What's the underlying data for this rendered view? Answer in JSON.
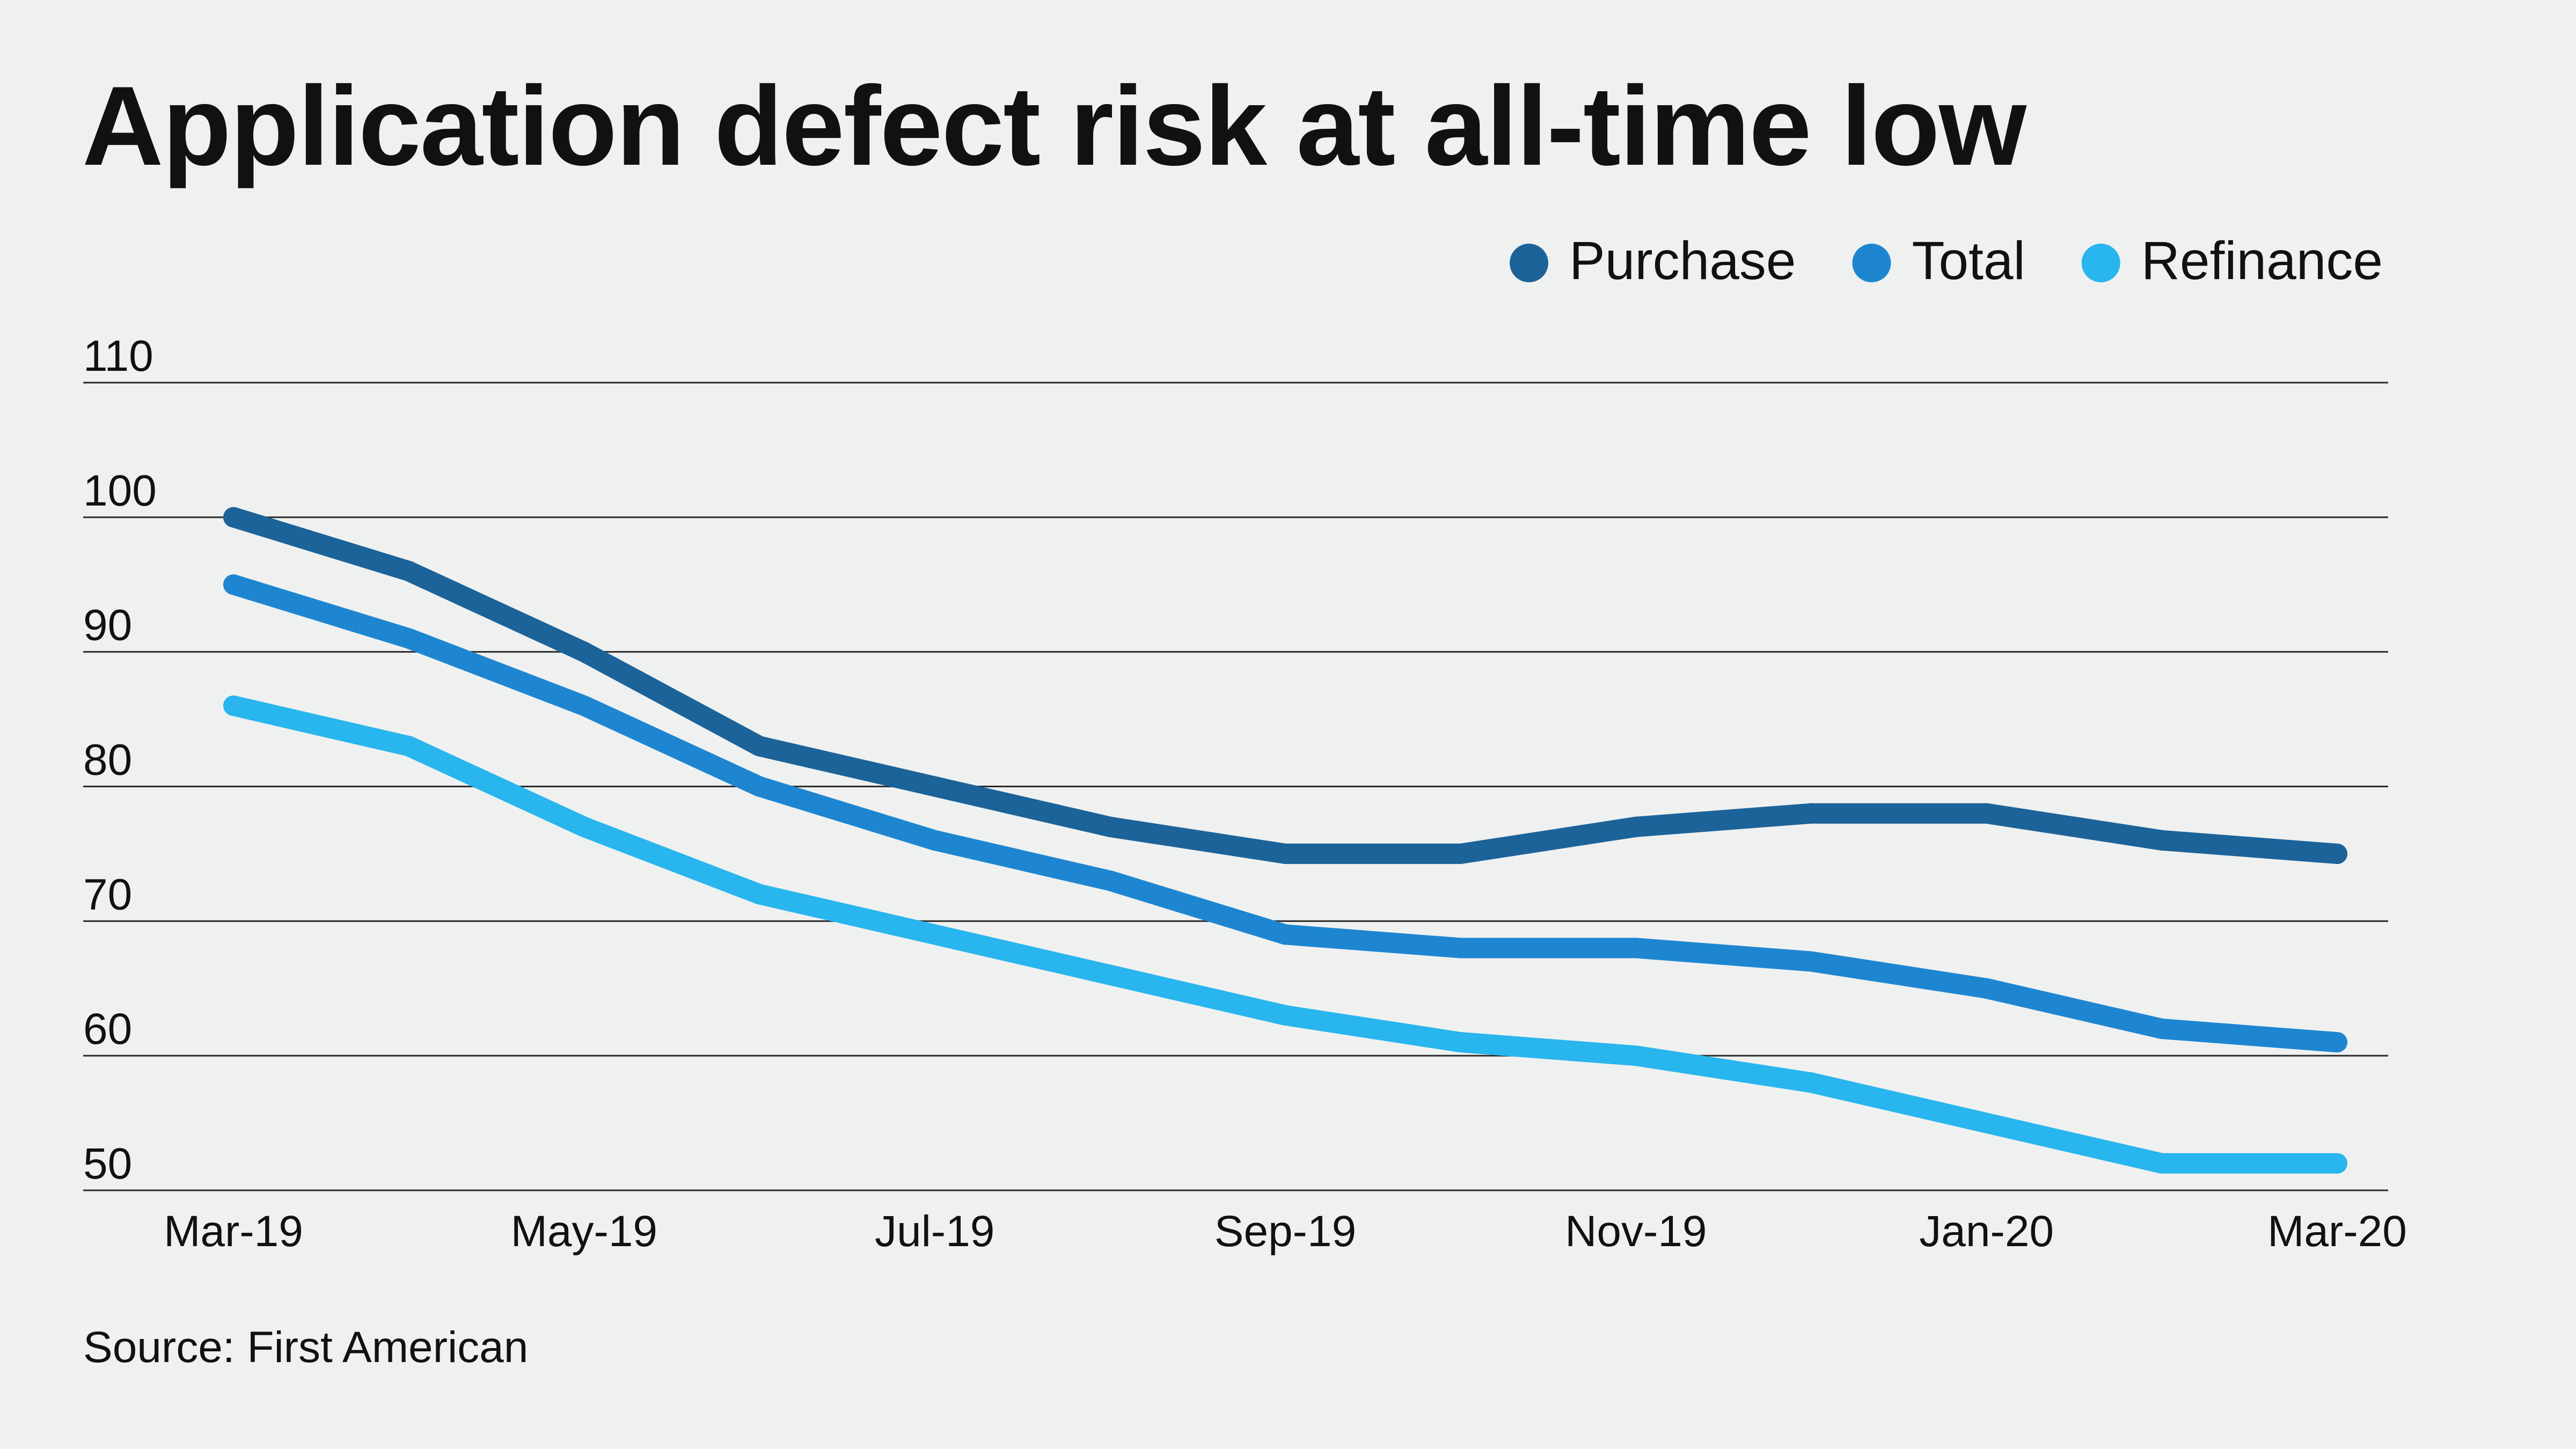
{
  "title": "Application defect risk at all-time low",
  "source": "Source: First American",
  "chart_data": {
    "type": "line",
    "title": "Application defect risk at all-time low",
    "x": [
      "Mar-19",
      "Apr-19",
      "May-19",
      "Jun-19",
      "Jul-19",
      "Aug-19",
      "Sep-19",
      "Oct-19",
      "Nov-19",
      "Dec-19",
      "Jan-20",
      "Feb-20",
      "Mar-20"
    ],
    "x_tick_labels": [
      "Mar-19",
      "May-19",
      "Jul-19",
      "Sep-19",
      "Nov-19",
      "Jan-20",
      "Mar-20"
    ],
    "xlabel": "",
    "ylabel": "",
    "ylim": [
      50,
      110
    ],
    "y_ticks": [
      50,
      60,
      70,
      80,
      90,
      100,
      110
    ],
    "grid": "horizontal",
    "legend_position": "top-right",
    "series": [
      {
        "name": "Purchase",
        "color": "#1c639a",
        "values": [
          100,
          96,
          90,
          83,
          80,
          77,
          75,
          75,
          77,
          78,
          78,
          76,
          75
        ]
      },
      {
        "name": "Total",
        "color": "#1e86d1",
        "values": [
          95,
          91,
          86,
          80,
          76,
          73,
          69,
          68,
          68,
          67,
          65,
          62,
          61
        ]
      },
      {
        "name": "Refinance",
        "color": "#29b5ee",
        "values": [
          86,
          83,
          77,
          72,
          69,
          66,
          63,
          61,
          60,
          58,
          55,
          52,
          52
        ]
      }
    ]
  }
}
